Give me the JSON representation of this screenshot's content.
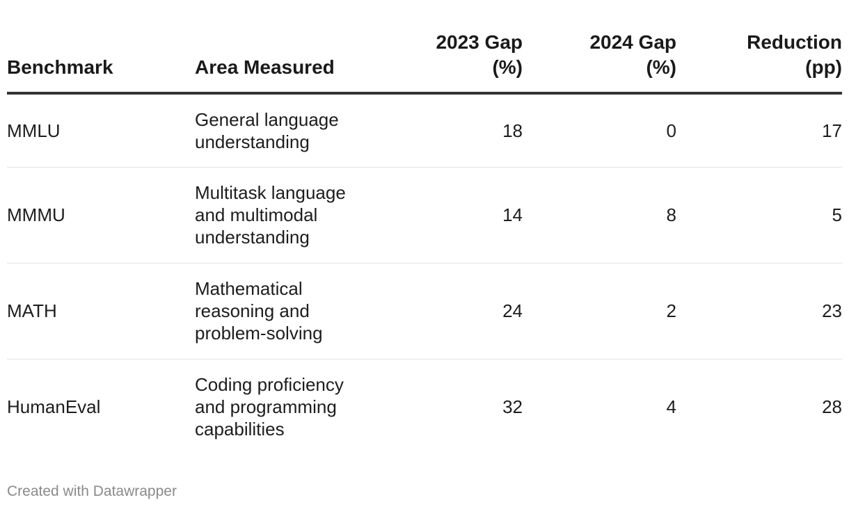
{
  "chart_data": {
    "type": "table",
    "columns": [
      "Benchmark",
      "Area Measured",
      "2023 Gap (%)",
      "2024 Gap (%)",
      "Reduction (pp)"
    ],
    "header": {
      "benchmark": "Benchmark",
      "area": "Area Measured",
      "gap2023_line1": "2023 Gap",
      "gap2023_line2": "(%)",
      "gap2024_line1": "2024 Gap",
      "gap2024_line2": "(%)",
      "reduction_line1": "Reduction",
      "reduction_line2": "(pp)"
    },
    "rows": [
      {
        "benchmark": "MMLU",
        "area": "General language understanding",
        "gap2023": "18",
        "gap2024": "0",
        "reduction": "17"
      },
      {
        "benchmark": "MMMU",
        "area": "Multitask language and multimodal understanding",
        "gap2023": "14",
        "gap2024": "8",
        "reduction": "5"
      },
      {
        "benchmark": "MATH",
        "area": "Mathematical reasoning and problem-solving",
        "gap2023": "24",
        "gap2024": "2",
        "reduction": "23"
      },
      {
        "benchmark": "HumanEval",
        "area": "Coding proficiency and programming capabilities",
        "gap2023": "32",
        "gap2024": "4",
        "reduction": "28"
      }
    ]
  },
  "footer": {
    "credit": "Created with Datawrapper"
  }
}
